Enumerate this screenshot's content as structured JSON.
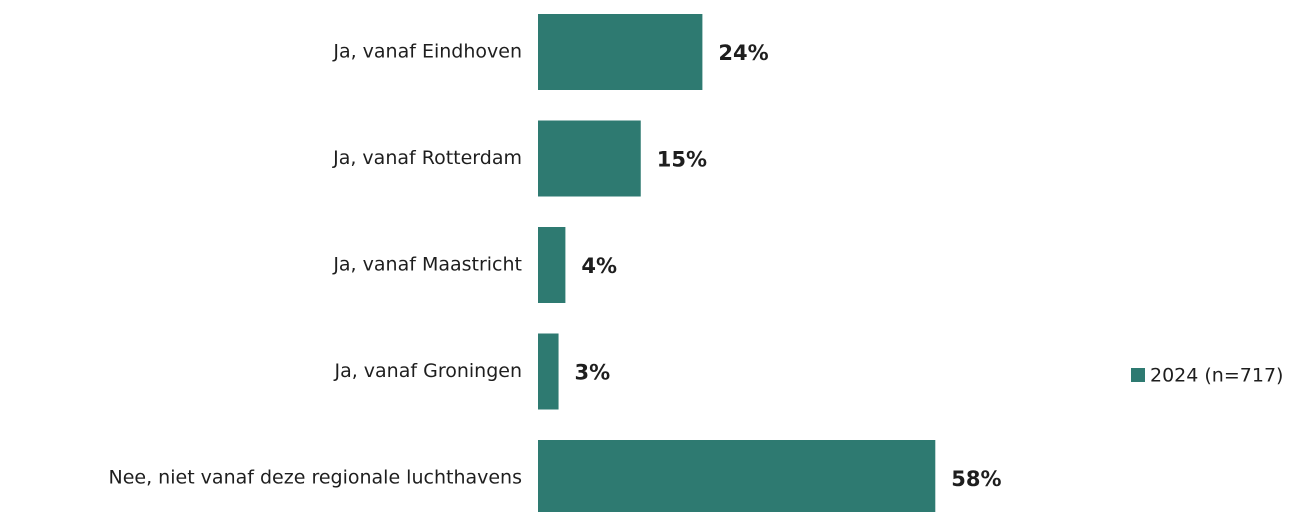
{
  "chart_data": {
    "type": "bar",
    "orientation": "horizontal",
    "categories": [
      "Ja, vanaf Eindhoven",
      "Ja, vanaf Rotterdam",
      "Ja, vanaf Maastricht",
      "Ja, vanaf Groningen",
      "Nee, niet vanaf deze regionale luchthavens"
    ],
    "series": [
      {
        "name": "2024 (n=717)",
        "color": "#2e7a71",
        "values": [
          24,
          15,
          4,
          3,
          58
        ],
        "value_labels": [
          "24%",
          "15%",
          "4%",
          "3%",
          "58%"
        ]
      }
    ],
    "legend": "right"
  }
}
